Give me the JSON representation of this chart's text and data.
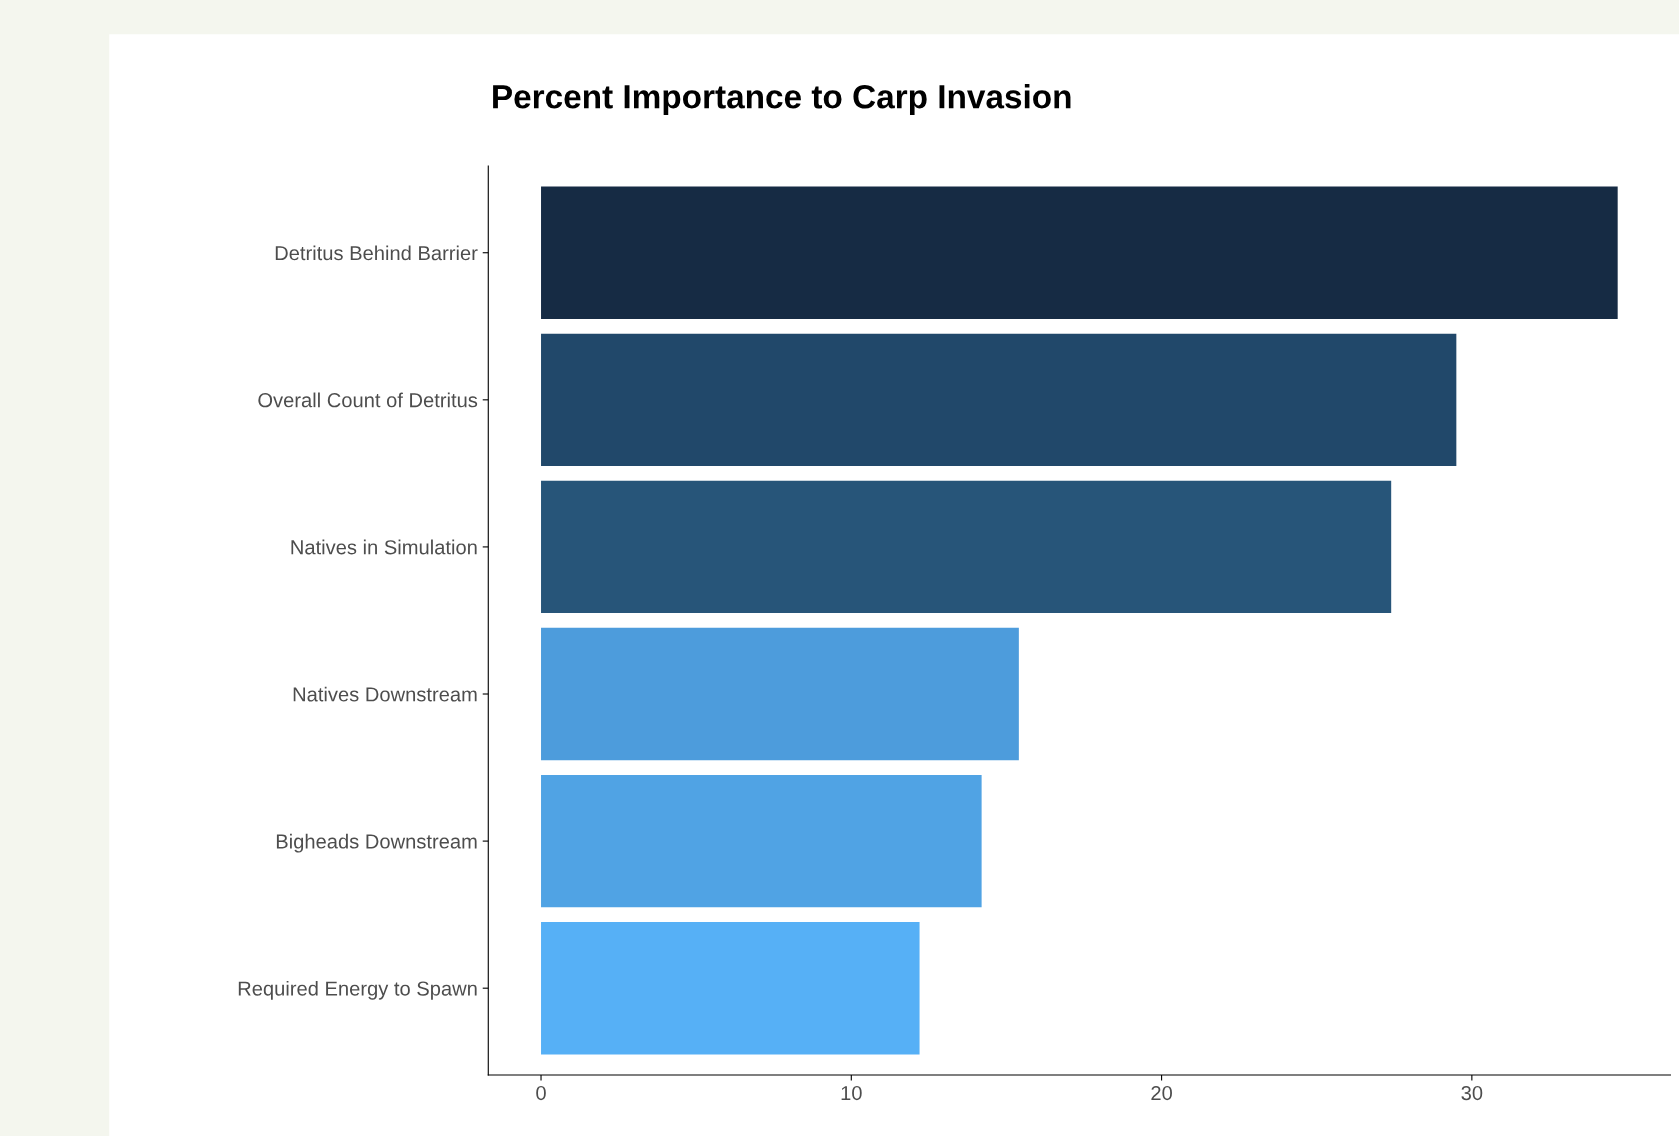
{
  "chart_data": {
    "type": "bar",
    "orientation": "horizontal",
    "title": "Percent Importance to Carp Invasion",
    "categories": [
      "Detritus Behind Barrier",
      "Overall Count of Detritus",
      "Natives in Simulation",
      "Natives Downstream",
      "Bigheads Downstream",
      "Required Energy to Spawn"
    ],
    "values": [
      34.7,
      29.5,
      27.4,
      15.4,
      14.2,
      12.2
    ],
    "colors": [
      "#162b44",
      "#21486a",
      "#275579",
      "#4d9cdc",
      "#50a3e4",
      "#56b0f6"
    ],
    "xlim": [
      -1.7,
      36.4
    ],
    "xticks": [
      0,
      10,
      20,
      30
    ],
    "grid": false,
    "legend": false
  }
}
